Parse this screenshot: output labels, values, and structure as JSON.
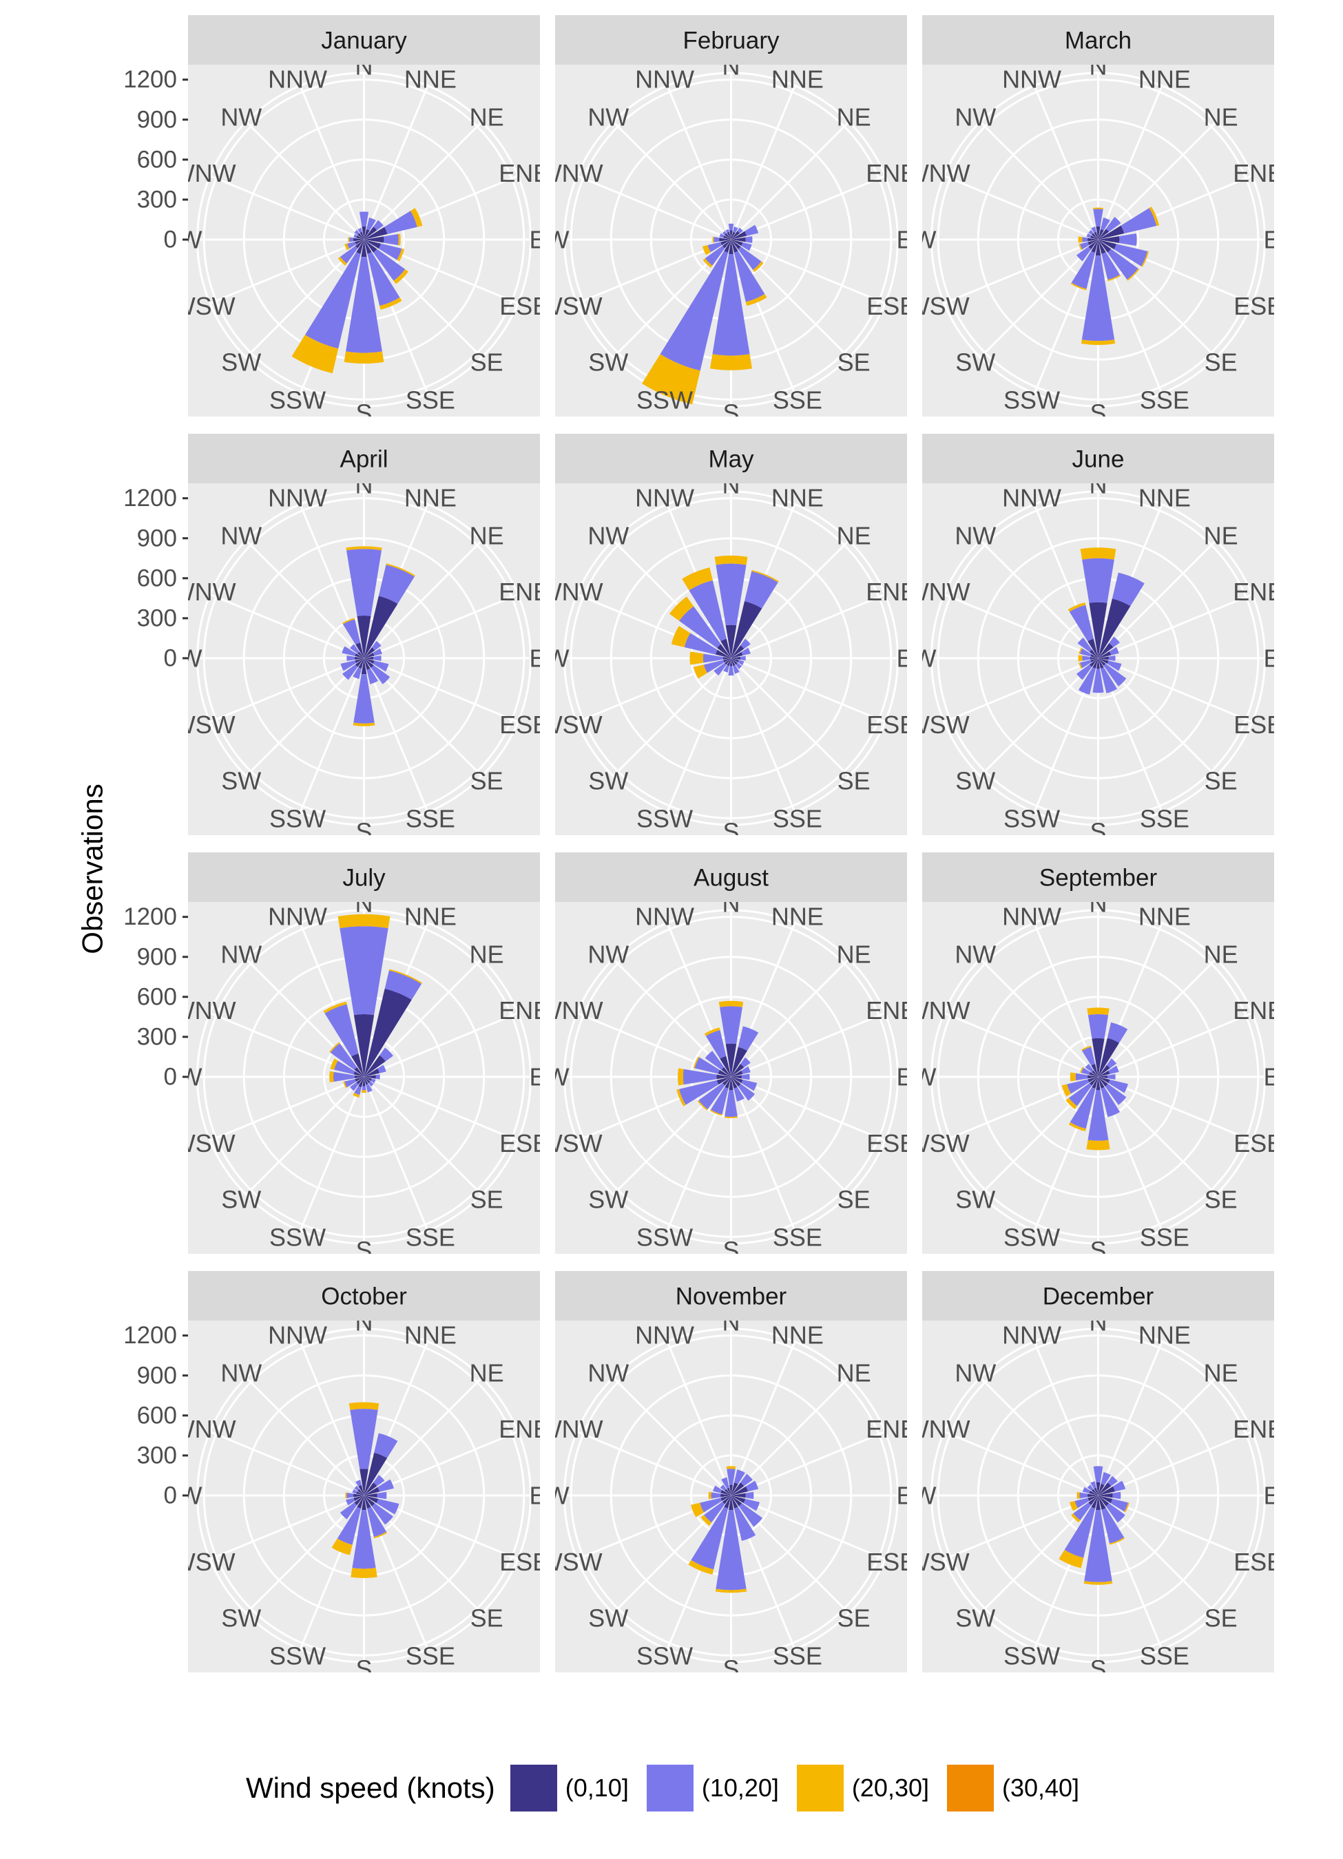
{
  "chart_data": {
    "type": "polar-stacked-bar",
    "ylabel": "Observations",
    "yticks": [
      0,
      300,
      600,
      900,
      1200
    ],
    "ylim": [
      0,
      1250
    ],
    "grid": true,
    "directions": [
      "N",
      "NNE",
      "NE",
      "ENE",
      "E",
      "ESE",
      "SE",
      "SSE",
      "S",
      "SSW",
      "SW",
      "WSW",
      "W",
      "WNW",
      "NW",
      "NNW"
    ],
    "legend": {
      "title": "Wind speed (knots)",
      "position": "bottom",
      "bins": [
        {
          "label": "(0,10]",
          "color": "#3c3487"
        },
        {
          "label": "(10,20]",
          "color": "#7b78ec"
        },
        {
          "label": "(20,30]",
          "color": "#f5b700"
        },
        {
          "label": "(30,40]",
          "color": "#f08a00"
        }
      ]
    },
    "panels": [
      {
        "month": "January",
        "values": [
          [
            100,
            110,
            0,
            0
          ],
          [
            80,
            90,
            0,
            0
          ],
          [
            120,
            60,
            0,
            0
          ],
          [
            180,
            230,
            40,
            0
          ],
          [
            150,
            110,
            15,
            0
          ],
          [
            130,
            160,
            20,
            0
          ],
          [
            120,
            260,
            30,
            0
          ],
          [
            110,
            400,
            30,
            0
          ],
          [
            130,
            720,
            80,
            0
          ],
          [
            110,
            730,
            190,
            0
          ],
          [
            80,
            140,
            20,
            0
          ],
          [
            70,
            60,
            20,
            0
          ],
          [
            80,
            30,
            10,
            0
          ],
          [
            60,
            20,
            0,
            0
          ],
          [
            60,
            30,
            0,
            0
          ],
          [
            60,
            30,
            0,
            0
          ]
        ]
      },
      {
        "month": "February",
        "values": [
          [
            70,
            50,
            0,
            0
          ],
          [
            60,
            40,
            0,
            0
          ],
          [
            80,
            30,
            0,
            0
          ],
          [
            120,
            90,
            0,
            0
          ],
          [
            110,
            50,
            0,
            0
          ],
          [
            90,
            70,
            0,
            0
          ],
          [
            90,
            190,
            20,
            0
          ],
          [
            100,
            380,
            30,
            0
          ],
          [
            110,
            760,
            110,
            0
          ],
          [
            100,
            910,
            260,
            0
          ],
          [
            80,
            160,
            20,
            0
          ],
          [
            80,
            100,
            40,
            0
          ],
          [
            90,
            40,
            10,
            0
          ],
          [
            60,
            30,
            0,
            0
          ],
          [
            60,
            20,
            0,
            0
          ],
          [
            60,
            20,
            0,
            0
          ]
        ]
      },
      {
        "month": "March",
        "values": [
          [
            100,
            130,
            10,
            0
          ],
          [
            80,
            90,
            0,
            0
          ],
          [
            100,
            110,
            0,
            0
          ],
          [
            200,
            250,
            20,
            0
          ],
          [
            160,
            130,
            0,
            0
          ],
          [
            140,
            240,
            10,
            0
          ],
          [
            120,
            250,
            10,
            0
          ],
          [
            110,
            200,
            10,
            0
          ],
          [
            120,
            640,
            30,
            0
          ],
          [
            100,
            280,
            10,
            0
          ],
          [
            90,
            110,
            0,
            0
          ],
          [
            80,
            60,
            10,
            0
          ],
          [
            80,
            40,
            30,
            0
          ],
          [
            60,
            30,
            0,
            0
          ],
          [
            60,
            30,
            0,
            0
          ],
          [
            60,
            40,
            0,
            0
          ]
        ]
      },
      {
        "month": "April",
        "values": [
          [
            320,
            500,
            20,
            0
          ],
          [
            480,
            240,
            10,
            0
          ],
          [
            100,
            60,
            0,
            0
          ],
          [
            80,
            60,
            0,
            0
          ],
          [
            70,
            60,
            0,
            0
          ],
          [
            80,
            110,
            0,
            0
          ],
          [
            90,
            150,
            0,
            0
          ],
          [
            90,
            110,
            0,
            0
          ],
          [
            120,
            370,
            20,
            0
          ],
          [
            80,
            80,
            0,
            0
          ],
          [
            80,
            120,
            0,
            0
          ],
          [
            70,
            110,
            0,
            0
          ],
          [
            70,
            60,
            0,
            0
          ],
          [
            70,
            100,
            0,
            0
          ],
          [
            60,
            70,
            0,
            0
          ],
          [
            120,
            180,
            10,
            0
          ]
        ]
      },
      {
        "month": "May",
        "values": [
          [
            250,
            460,
            60,
            0
          ],
          [
            440,
            230,
            10,
            0
          ],
          [
            120,
            60,
            0,
            0
          ],
          [
            90,
            60,
            0,
            0
          ],
          [
            70,
            40,
            0,
            0
          ],
          [
            60,
            40,
            0,
            0
          ],
          [
            60,
            40,
            0,
            0
          ],
          [
            60,
            60,
            0,
            0
          ],
          [
            60,
            70,
            0,
            0
          ],
          [
            60,
            50,
            0,
            0
          ],
          [
            60,
            100,
            0,
            0
          ],
          [
            60,
            150,
            80,
            0
          ],
          [
            60,
            150,
            100,
            0
          ],
          [
            120,
            240,
            100,
            0
          ],
          [
            130,
            350,
            90,
            0
          ],
          [
            150,
            450,
            100,
            0
          ]
        ]
      },
      {
        "month": "June",
        "values": [
          [
            420,
            330,
            80,
            0
          ],
          [
            460,
            200,
            0,
            0
          ],
          [
            140,
            60,
            0,
            0
          ],
          [
            100,
            60,
            0,
            0
          ],
          [
            80,
            50,
            0,
            0
          ],
          [
            80,
            100,
            0,
            0
          ],
          [
            70,
            190,
            0,
            0
          ],
          [
            80,
            190,
            0,
            0
          ],
          [
            80,
            180,
            0,
            0
          ],
          [
            80,
            200,
            0,
            0
          ],
          [
            80,
            120,
            0,
            0
          ],
          [
            60,
            80,
            10,
            0
          ],
          [
            60,
            60,
            30,
            0
          ],
          [
            60,
            80,
            10,
            0
          ],
          [
            80,
            110,
            0,
            0
          ],
          [
            150,
            260,
            20,
            0
          ]
        ]
      },
      {
        "month": "July",
        "values": [
          [
            470,
            660,
            90,
            0
          ],
          [
            680,
            140,
            10,
            0
          ],
          [
            200,
            70,
            0,
            0
          ],
          [
            120,
            50,
            0,
            0
          ],
          [
            90,
            30,
            0,
            0
          ],
          [
            60,
            30,
            0,
            0
          ],
          [
            60,
            30,
            0,
            0
          ],
          [
            60,
            60,
            0,
            0
          ],
          [
            70,
            30,
            20,
            0
          ],
          [
            80,
            60,
            20,
            0
          ],
          [
            70,
            60,
            0,
            0
          ],
          [
            70,
            80,
            10,
            0
          ],
          [
            70,
            160,
            30,
            0
          ],
          [
            80,
            150,
            30,
            0
          ],
          [
            90,
            220,
            10,
            0
          ],
          [
            180,
            380,
            20,
            0
          ]
        ]
      },
      {
        "month": "August",
        "values": [
          [
            250,
            280,
            40,
            0
          ],
          [
            230,
            160,
            0,
            0
          ],
          [
            120,
            60,
            0,
            0
          ],
          [
            90,
            60,
            0,
            0
          ],
          [
            80,
            60,
            0,
            0
          ],
          [
            90,
            110,
            0,
            0
          ],
          [
            90,
            130,
            0,
            0
          ],
          [
            90,
            100,
            0,
            0
          ],
          [
            100,
            200,
            10,
            0
          ],
          [
            90,
            200,
            10,
            0
          ],
          [
            80,
            220,
            10,
            0
          ],
          [
            110,
            290,
            20,
            0
          ],
          [
            110,
            250,
            40,
            0
          ],
          [
            100,
            180,
            10,
            0
          ],
          [
            90,
            150,
            0,
            0
          ],
          [
            160,
            200,
            20,
            0
          ]
        ]
      },
      {
        "month": "September",
        "values": [
          [
            290,
            180,
            50,
            0
          ],
          [
            300,
            120,
            0,
            0
          ],
          [
            110,
            60,
            0,
            0
          ],
          [
            90,
            70,
            0,
            0
          ],
          [
            70,
            60,
            0,
            0
          ],
          [
            90,
            140,
            0,
            0
          ],
          [
            90,
            170,
            0,
            0
          ],
          [
            90,
            220,
            0,
            0
          ],
          [
            100,
            380,
            70,
            0
          ],
          [
            90,
            310,
            20,
            0
          ],
          [
            80,
            190,
            30,
            0
          ],
          [
            80,
            160,
            40,
            0
          ],
          [
            80,
            90,
            40,
            0
          ],
          [
            70,
            60,
            10,
            0
          ],
          [
            60,
            60,
            0,
            0
          ],
          [
            100,
            130,
            10,
            0
          ]
        ]
      },
      {
        "month": "October",
        "values": [
          [
            200,
            450,
            50,
            0
          ],
          [
            330,
            150,
            0,
            0
          ],
          [
            120,
            70,
            0,
            0
          ],
          [
            120,
            110,
            0,
            0
          ],
          [
            100,
            70,
            0,
            0
          ],
          [
            110,
            160,
            0,
            0
          ],
          [
            100,
            170,
            0,
            0
          ],
          [
            100,
            220,
            10,
            0
          ],
          [
            110,
            440,
            70,
            0
          ],
          [
            100,
            280,
            80,
            0
          ],
          [
            90,
            130,
            0,
            0
          ],
          [
            80,
            60,
            0,
            0
          ],
          [
            80,
            50,
            10,
            0
          ],
          [
            60,
            30,
            0,
            0
          ],
          [
            60,
            30,
            0,
            0
          ],
          [
            80,
            40,
            0,
            0
          ]
        ]
      },
      {
        "month": "November",
        "values": [
          [
            80,
            120,
            20,
            0
          ],
          [
            100,
            100,
            0,
            0
          ],
          [
            120,
            80,
            0,
            0
          ],
          [
            130,
            80,
            0,
            0
          ],
          [
            110,
            60,
            0,
            0
          ],
          [
            110,
            110,
            0,
            0
          ],
          [
            100,
            190,
            0,
            0
          ],
          [
            100,
            250,
            0,
            0
          ],
          [
            110,
            600,
            20,
            0
          ],
          [
            100,
            470,
            40,
            0
          ],
          [
            80,
            170,
            30,
            0
          ],
          [
            80,
            160,
            70,
            0
          ],
          [
            80,
            70,
            20,
            0
          ],
          [
            80,
            60,
            0,
            0
          ],
          [
            60,
            40,
            0,
            0
          ],
          [
            60,
            80,
            0,
            0
          ]
        ]
      },
      {
        "month": "December",
        "values": [
          [
            100,
            120,
            0,
            0
          ],
          [
            90,
            90,
            0,
            0
          ],
          [
            120,
            60,
            0,
            0
          ],
          [
            130,
            80,
            0,
            0
          ],
          [
            110,
            60,
            0,
            0
          ],
          [
            110,
            120,
            10,
            0
          ],
          [
            100,
            150,
            0,
            0
          ],
          [
            110,
            260,
            10,
            0
          ],
          [
            110,
            540,
            20,
            0
          ],
          [
            100,
            380,
            80,
            0
          ],
          [
            90,
            140,
            20,
            0
          ],
          [
            80,
            100,
            40,
            0
          ],
          [
            80,
            60,
            20,
            0
          ],
          [
            70,
            50,
            0,
            0
          ],
          [
            60,
            40,
            0,
            0
          ],
          [
            60,
            50,
            0,
            0
          ]
        ]
      }
    ]
  }
}
